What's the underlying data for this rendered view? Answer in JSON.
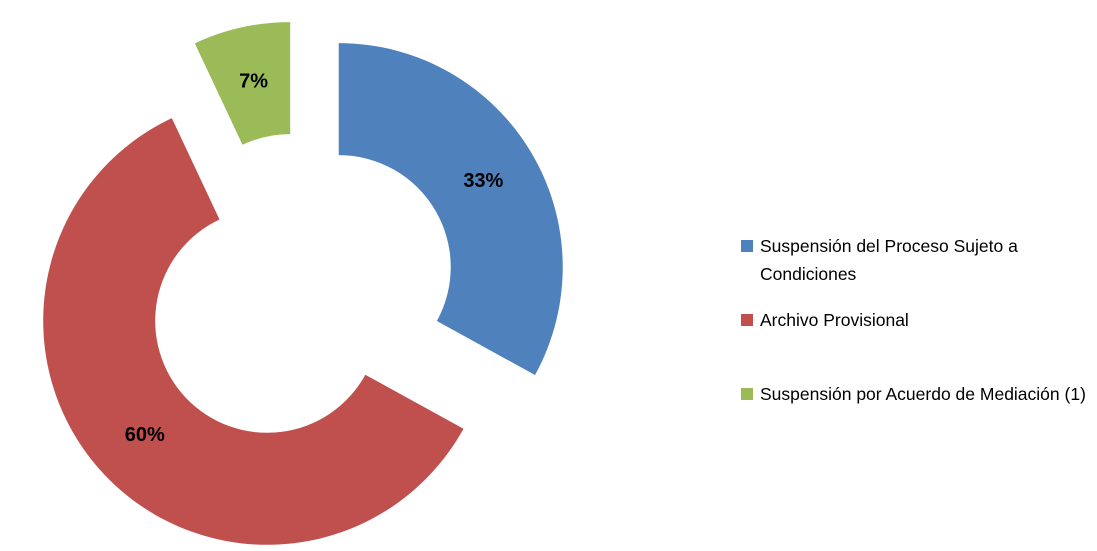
{
  "chart_data": {
    "type": "donut",
    "categories": [
      "Suspensión del Proceso Sujeto a Condiciones",
      "Archivo Provisional",
      "Suspensión por Acuerdo de Mediación (1)"
    ],
    "values": [
      33,
      60,
      7
    ],
    "value_labels": [
      "33%",
      "60%",
      "7%"
    ],
    "colors": [
      "#4f81bd",
      "#c0504d",
      "#9bbb59"
    ],
    "legend": "right"
  }
}
